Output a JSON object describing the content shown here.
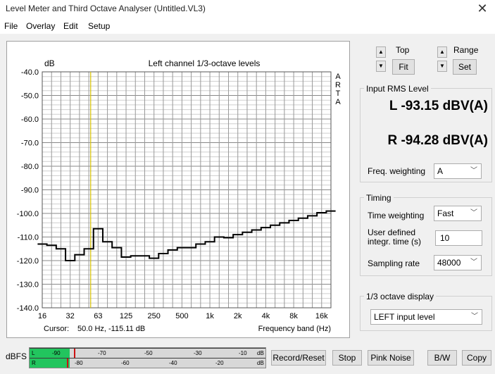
{
  "window": {
    "title": "Level Meter and Third Octave Analyser (Untitled.VL3)"
  },
  "menu": [
    "File",
    "Overlay",
    "Edit",
    "Setup"
  ],
  "controls": {
    "top_label": "Top",
    "fit_label": "Fit",
    "range_label": "Range",
    "set_label": "Set"
  },
  "rms": {
    "group_title": "Input RMS Level",
    "left": "L -93.15 dBV(A)",
    "right": "R -94.28 dBV(A)",
    "freq_weighting_label": "Freq. weighting",
    "freq_weighting_value": "A"
  },
  "timing": {
    "group_title": "Timing",
    "time_weighting_label": "Time weighting",
    "time_weighting_value": "Fast",
    "user_time_label_1": "User defined",
    "user_time_label_2": "integr. time (s)",
    "user_time_value": "10",
    "sampling_rate_label": "Sampling rate",
    "sampling_rate_value": "48000"
  },
  "octave_display": {
    "group_title": "1/3 octave display",
    "value": "LEFT input level"
  },
  "meter": {
    "dbfs_label": "dBFS",
    "L": {
      "channel": "L",
      "ticks": [
        "-90",
        "-70",
        "-50",
        "-30",
        "-10",
        "dB"
      ],
      "level_fraction": 0.17
    },
    "R": {
      "channel": "R",
      "ticks": [
        "-80",
        "-60",
        "-40",
        "-20",
        "dB"
      ],
      "level_fraction": 0.17
    }
  },
  "buttons": {
    "record_reset": "Record/Reset",
    "stop": "Stop",
    "pink_noise": "Pink Noise",
    "bw": "B/W",
    "copy": "Copy"
  },
  "chart_data": {
    "type": "line",
    "title": "Left channel 1/3-octave levels",
    "ylabel": "dB",
    "xlabel": "Frequency band (Hz)",
    "side_label": [
      "A",
      "R",
      "T",
      "A"
    ],
    "ylim": [
      -140,
      -40
    ],
    "y_ticks": [
      "-40.0",
      "-50.0",
      "-60.0",
      "-70.0",
      "-80.0",
      "-90.0",
      "-100.0",
      "-110.0",
      "-120.0",
      "-130.0",
      "-140.0"
    ],
    "x_tick_labels": [
      "16",
      "32",
      "63",
      "125",
      "250",
      "500",
      "1k",
      "2k",
      "4k",
      "8k",
      "16k"
    ],
    "x_bands": [
      "16",
      "20",
      "25",
      "31.5",
      "40",
      "50",
      "63",
      "80",
      "100",
      "125",
      "160",
      "200",
      "250",
      "315",
      "400",
      "500",
      "630",
      "800",
      "1k",
      "1.25k",
      "1.6k",
      "2k",
      "2.5k",
      "3.15k",
      "4k",
      "5k",
      "6.3k",
      "8k",
      "10k",
      "12.5k",
      "16k",
      "20k"
    ],
    "values": [
      -113,
      -113.5,
      -115,
      -120,
      -117.5,
      -115,
      -106.5,
      -112,
      -114.5,
      -118.5,
      -118,
      -118,
      -119,
      -117,
      -115.5,
      -114.5,
      -114.5,
      -113,
      -112,
      -110,
      -110.3,
      -109,
      -108,
      -107,
      -106,
      -105,
      -104,
      -103,
      -102,
      -101,
      -99.7,
      -99
    ],
    "cursor": {
      "text": "Cursor:",
      "value": "50.0 Hz, -115.11 dB",
      "band_index": 5.2
    },
    "grid": true
  }
}
